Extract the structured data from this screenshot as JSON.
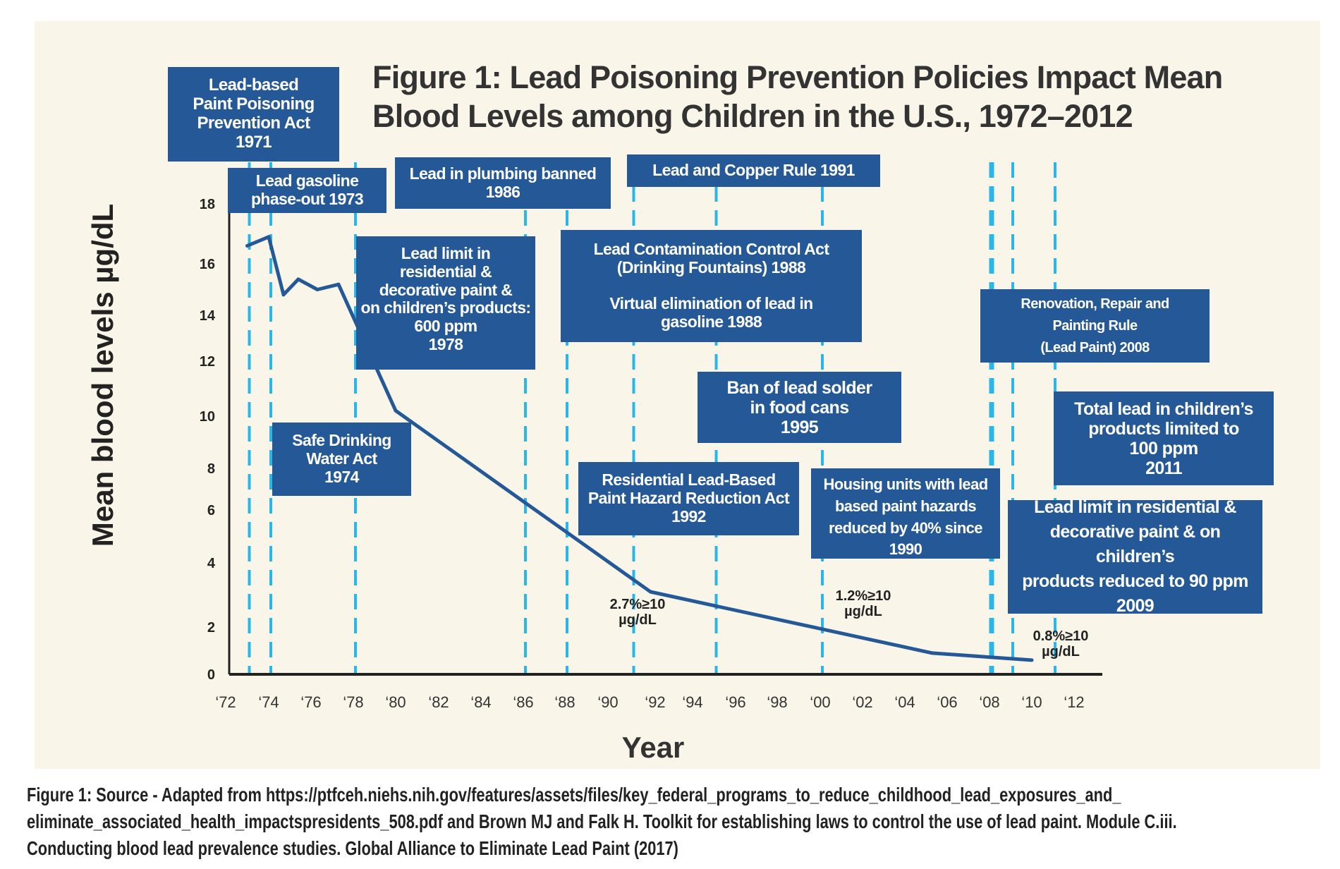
{
  "title_lines": [
    "Figure 1: Lead Poisoning Prevention Policies Impact Mean",
    "Blood Levels among Children in the U.S., 1972–2012"
  ],
  "colors": {
    "background": "#f9f5e8",
    "box": "#245896",
    "dashed_line": "#29b6e8",
    "series_line": "#245896"
  },
  "policy_boxes": [
    {
      "text": "Lead-based\nPaint Poisoning\nPrevention Act\n1971"
    },
    {
      "text": "Lead gasoline\nphase-out 1973"
    },
    {
      "text": "Lead in plumbing banned\n1986"
    },
    {
      "text": "Lead and Copper Rule 1991"
    },
    {
      "text": "Lead limit in\nresidential &\ndecorative paint &\non children’s products:\n600 ppm\n1978"
    },
    {
      "text": "Lead Contamination Control Act\n(Drinking Fountains) 1988\n\nVirtual elimination of lead in\ngasoline 1988"
    },
    {
      "text": "Renovation, Repair and\nPainting Rule\n(Lead Paint) 2008"
    },
    {
      "text": "Ban of lead solder\nin food cans\n1995"
    },
    {
      "text": "Total lead in children’s\nproducts limited to\n100 ppm\n2011"
    },
    {
      "text": "Safe Drinking\nWater Act\n1974"
    },
    {
      "text": "Residential Lead-Based\nPaint Hazard Reduction Act\n1992"
    },
    {
      "text": "Housing units with lead\nbased paint hazards\nreduced by 40% since\n1990"
    },
    {
      "text": "Lead limit in residential &\ndecorative paint & on children’s\nproducts reduced to 90 ppm\n2009"
    }
  ],
  "annotations": [
    "2.7%≥10\nµg/dL",
    "1.2%≥10\nµg/dL",
    "0.8%≥10\nµg/dL"
  ],
  "caption_lines": [
    "Figure 1: Source - Adapted from https://ptfceh.niehs.nih.gov/features/assets/files/key_federal_programs_to_reduce_childhood_lead_exposures_and_",
    "eliminate_associated_health_impactspresidents_508.pdf and Brown MJ and Falk H. Toolkit for establishing laws to control the use of lead paint. Module C.iii.",
    "Conducting blood lead prevalence studies. Global Alliance to Eliminate Lead Paint (2017)"
  ],
  "chart_data": {
    "type": "line",
    "title": "Figure 1: Lead Poisoning Prevention Policies Impact Mean Blood Levels among Children in the U.S., 1972–2012",
    "xlabel": "Year",
    "ylabel": "Mean blood levels µg/dL",
    "x_tick_labels": [
      "‘72",
      "‘74",
      "‘76",
      "‘78",
      "‘80",
      "‘82",
      "‘84",
      "‘86",
      "‘88",
      "‘90",
      "‘92",
      "‘94",
      "‘96",
      "‘98",
      "‘00",
      "‘02",
      "‘04",
      "‘06",
      "‘08",
      "‘10",
      "‘12"
    ],
    "x_ticks": [
      1972,
      1974,
      1976,
      1978,
      1980,
      1982,
      1984,
      1986,
      1988,
      1990,
      1992,
      1994,
      1996,
      1998,
      2000,
      2002,
      2004,
      2006,
      2008,
      2010,
      2012
    ],
    "y_tick_labels": [
      "0",
      "2",
      "4",
      "6",
      "8",
      "10",
      "12",
      "14",
      "16",
      "18"
    ],
    "y_ticks": [
      0,
      2,
      4,
      6,
      8,
      10,
      12,
      14,
      16,
      18
    ],
    "xlim": [
      1972,
      2013
    ],
    "ylim": [
      0,
      18
    ],
    "grid": false,
    "series": [
      {
        "x": [
          1973,
          1974,
          1974.7,
          1975.4,
          1976.3,
          1977.3,
          1980,
          1991.8,
          2005.3,
          2010
        ],
        "y": [
          16.6,
          16.9,
          14.8,
          15.4,
          15.0,
          15.2,
          10.2,
          3.1,
          0.9,
          0.6
        ]
      }
    ],
    "policy_years": [
      1973,
      1974,
      1978,
      1986,
      1988,
      1991,
      1995,
      2000,
      2008,
      2009,
      2011
    ]
  }
}
